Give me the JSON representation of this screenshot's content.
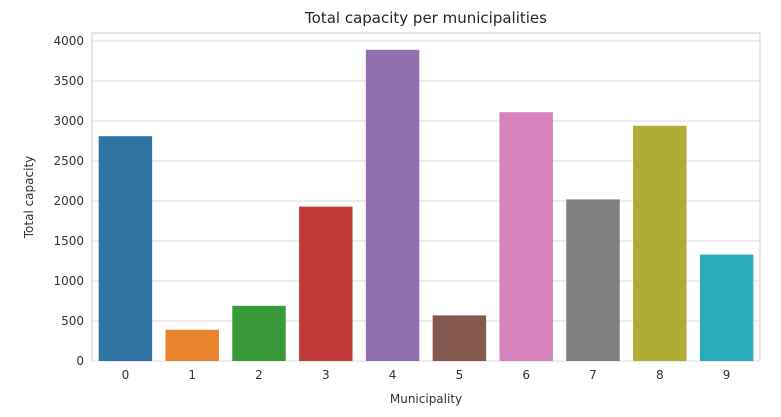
{
  "chart_data": {
    "type": "bar",
    "title": "Total capacity per municipalities",
    "xlabel": "Municipality",
    "ylabel": "Total capacity",
    "categories": [
      "0",
      "1",
      "2",
      "3",
      "4",
      "5",
      "6",
      "7",
      "8",
      "9"
    ],
    "values": [
      2810,
      390,
      690,
      1930,
      3890,
      570,
      3110,
      2020,
      2940,
      1330
    ],
    "colors": [
      "#2f73a3",
      "#e8852d",
      "#3a9a3a",
      "#c23b3a",
      "#9170b2",
      "#855850",
      "#d683bd",
      "#7f7f7f",
      "#afac35",
      "#2badbd"
    ],
    "ylim": [
      0,
      4100
    ],
    "yticks": [
      0,
      500,
      1000,
      1500,
      2000,
      2500,
      3000,
      3500,
      4000
    ],
    "grid": "horizontal",
    "legend": "none"
  }
}
